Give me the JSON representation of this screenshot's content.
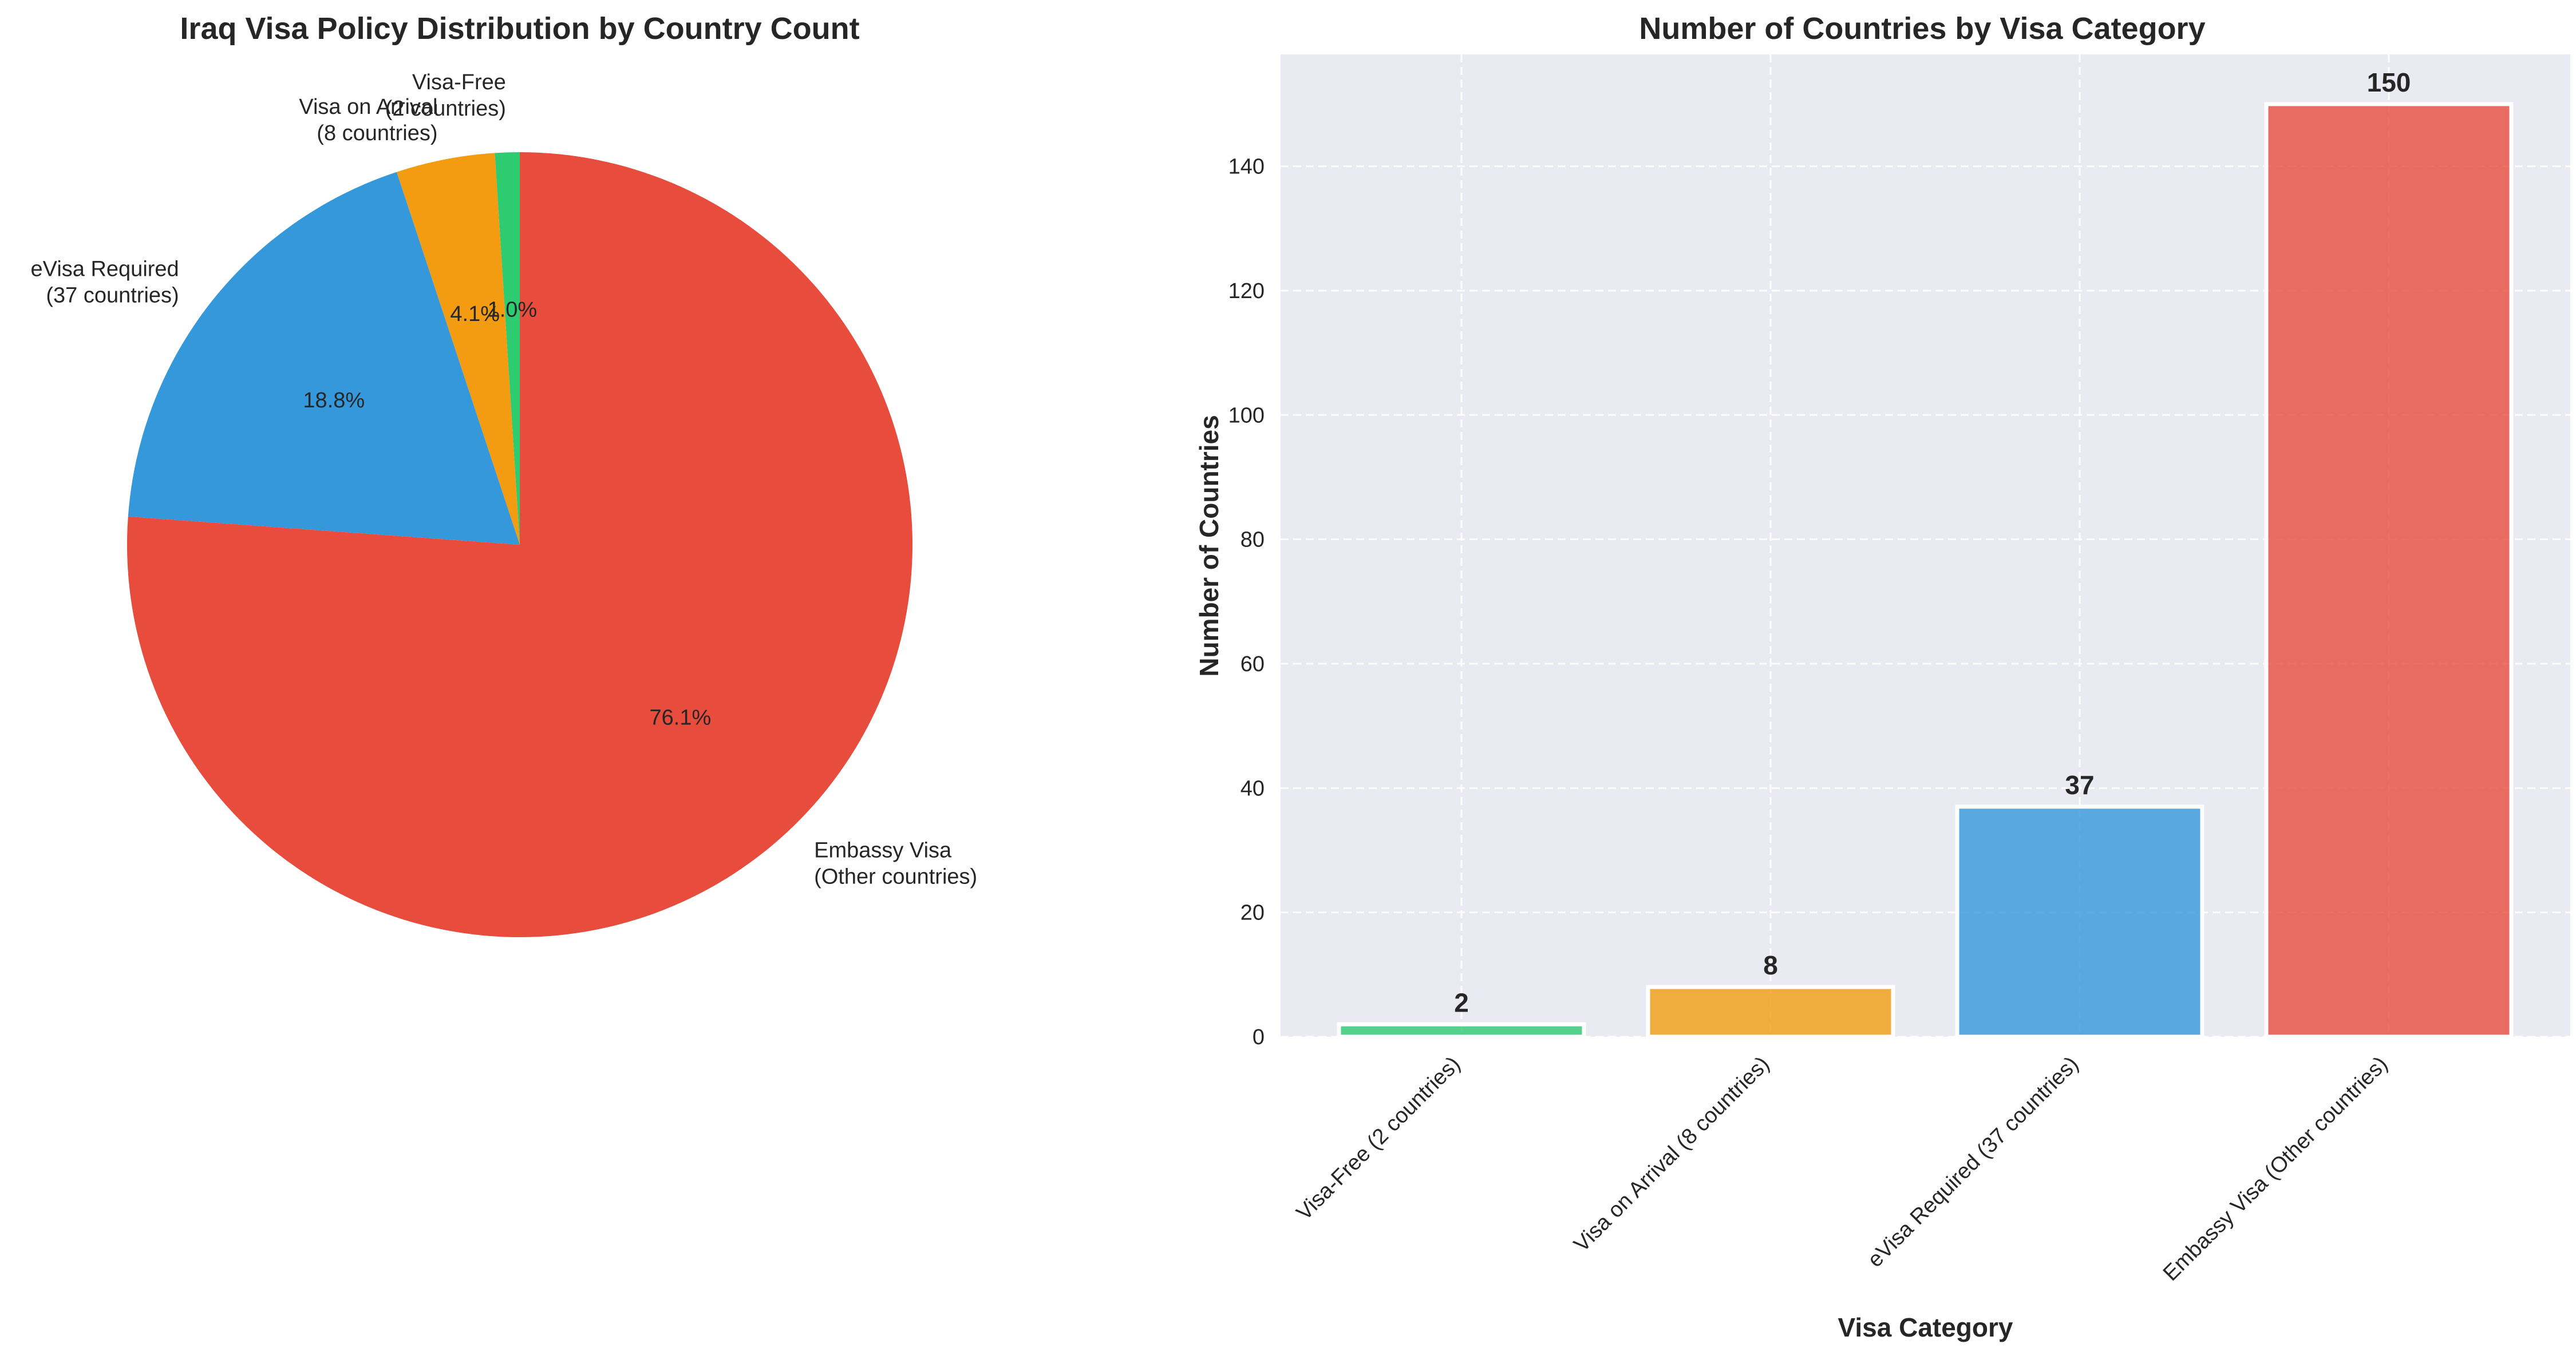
{
  "colors": {
    "visa_free": "#2ecc71",
    "visa_on_arrival": "#f39c12",
    "evisa": "#3498db",
    "embassy": "#e74c3c",
    "axes_background": "#eaeaf2"
  },
  "chart_data": [
    {
      "type": "pie",
      "title": "Iraq Visa Policy Distribution by Country Count",
      "start_angle_deg": 90,
      "direction": "counterclockwise",
      "slices": [
        {
          "label_line1": "Visa-Free",
          "label_line2": "(2 countries)",
          "value": 2,
          "pct_label": "1.0%",
          "color": "#2ecc71"
        },
        {
          "label_line1": "Visa on Arrival",
          "label_line2": "(8 countries)",
          "value": 8,
          "pct_label": "4.1%",
          "color": "#f39c12"
        },
        {
          "label_line1": "eVisa Required",
          "label_line2": "(37 countries)",
          "value": 37,
          "pct_label": "18.8%",
          "color": "#3498db"
        },
        {
          "label_line1": "Embassy Visa",
          "label_line2": "(Other countries)",
          "value": 150,
          "pct_label": "76.1%",
          "color": "#e74c3c"
        }
      ]
    },
    {
      "type": "bar",
      "title": "Number of Countries by Visa Category",
      "xlabel": "Visa Category",
      "ylabel": "Number of Countries",
      "categories": [
        "Visa-Free (2 countries)",
        "Visa on Arrival (8 countries)",
        "eVisa Required (37 countries)",
        "Embassy Visa (Other countries)"
      ],
      "values": [
        2,
        8,
        37,
        150
      ],
      "value_labels": [
        "2",
        "8",
        "37",
        "150"
      ],
      "colors": [
        "#2ecc71",
        "#f39c12",
        "#3498db",
        "#e74c3c"
      ],
      "ylim": [
        0,
        158
      ],
      "yticks": [
        0,
        20,
        40,
        60,
        80,
        100,
        120,
        140
      ],
      "grid": true
    }
  ]
}
